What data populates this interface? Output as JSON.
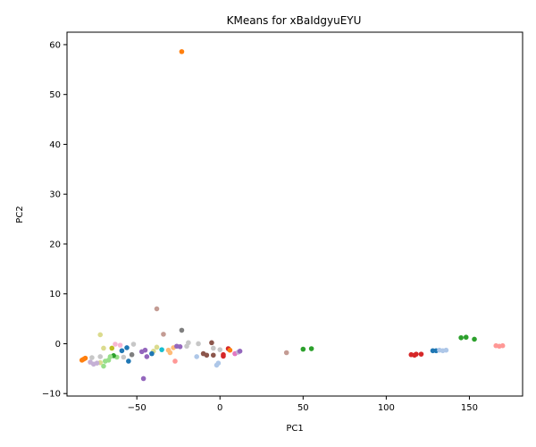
{
  "chart_data": {
    "type": "scatter",
    "title": "KMeans for xBaIdgyuEYU",
    "xlabel": "PC1",
    "ylabel": "PC2",
    "xlim": [
      -92,
      182
    ],
    "ylim": [
      -10.5,
      62.5
    ],
    "xticks": [
      -50,
      0,
      50,
      100,
      150
    ],
    "yticks": [
      -10,
      0,
      10,
      20,
      30,
      40,
      50,
      60
    ],
    "grid": false,
    "legend": false,
    "points": [
      {
        "x": -23,
        "y": 58.6,
        "color": "#ff7f0e"
      },
      {
        "x": -38,
        "y": 7.0,
        "color": "#c49c94"
      },
      {
        "x": -23,
        "y": 2.7,
        "color": "#7f7f7f"
      },
      {
        "x": -34,
        "y": 1.9,
        "color": "#c49c94"
      },
      {
        "x": -72,
        "y": 1.8,
        "color": "#dbdb8d"
      },
      {
        "x": -5,
        "y": 0.2,
        "color": "#8c564b"
      },
      {
        "x": -13,
        "y": 0.0,
        "color": "#c7c7c7"
      },
      {
        "x": -19,
        "y": 0.2,
        "color": "#c7c7c7"
      },
      {
        "x": -52,
        "y": -0.1,
        "color": "#c7c7c7"
      },
      {
        "x": -63,
        "y": -0.1,
        "color": "#f7b6d2"
      },
      {
        "x": -60,
        "y": -0.3,
        "color": "#f7b6d2"
      },
      {
        "x": -70,
        "y": -0.9,
        "color": "#dbdb8d"
      },
      {
        "x": -65,
        "y": -0.9,
        "color": "#bcbd22"
      },
      {
        "x": -38,
        "y": -0.7,
        "color": "#dbdb8d"
      },
      {
        "x": -35,
        "y": -1.2,
        "color": "#17becf"
      },
      {
        "x": -28,
        "y": -0.8,
        "color": "#ffbb78"
      },
      {
        "x": -26,
        "y": -0.5,
        "color": "#9467bd"
      },
      {
        "x": -24,
        "y": -0.6,
        "color": "#9467bd"
      },
      {
        "x": -20,
        "y": -0.5,
        "color": "#c7c7c7"
      },
      {
        "x": -4,
        "y": -0.9,
        "color": "#c7c7c7"
      },
      {
        "x": 0,
        "y": -1.2,
        "color": "#c7c7c7"
      },
      {
        "x": 5,
        "y": -1.0,
        "color": "#d62728"
      },
      {
        "x": 6,
        "y": -1.3,
        "color": "#ff7f0e"
      },
      {
        "x": -56,
        "y": -0.8,
        "color": "#1f77b4"
      },
      {
        "x": -59,
        "y": -1.4,
        "color": "#1f77b4"
      },
      {
        "x": -45,
        "y": -1.3,
        "color": "#9467bd"
      },
      {
        "x": -47,
        "y": -1.6,
        "color": "#9467bd"
      },
      {
        "x": -40,
        "y": -1.5,
        "color": "#dbdb8d"
      },
      {
        "x": -41,
        "y": -2.0,
        "color": "#1f77b4"
      },
      {
        "x": -31,
        "y": -1.3,
        "color": "#ffbb78"
      },
      {
        "x": -30,
        "y": -1.8,
        "color": "#ffbb78"
      },
      {
        "x": -10,
        "y": -2.0,
        "color": "#8c564b"
      },
      {
        "x": -8,
        "y": -2.3,
        "color": "#8c564b"
      },
      {
        "x": -4,
        "y": -2.3,
        "color": "#8c564b"
      },
      {
        "x": 2,
        "y": -2.2,
        "color": "#d62728"
      },
      {
        "x": 2,
        "y": -2.5,
        "color": "#d62728"
      },
      {
        "x": 9,
        "y": -2.0,
        "color": "#e377c2"
      },
      {
        "x": 11,
        "y": -1.7,
        "color": "#c5b0d5"
      },
      {
        "x": 12,
        "y": -1.5,
        "color": "#9467bd"
      },
      {
        "x": -14,
        "y": -2.6,
        "color": "#aec7e8"
      },
      {
        "x": -27,
        "y": -3.5,
        "color": "#ff9896"
      },
      {
        "x": -44,
        "y": -2.6,
        "color": "#9467bd"
      },
      {
        "x": -46,
        "y": -7.0,
        "color": "#9467bd"
      },
      {
        "x": -53,
        "y": -2.2,
        "color": "#7f7f7f"
      },
      {
        "x": -55,
        "y": -3.5,
        "color": "#1f77b4"
      },
      {
        "x": -58,
        "y": -2.7,
        "color": "#c7c7c7"
      },
      {
        "x": -62,
        "y": -2.7,
        "color": "#98df8a"
      },
      {
        "x": -64,
        "y": -2.4,
        "color": "#2ca02c"
      },
      {
        "x": -66,
        "y": -2.6,
        "color": "#98df8a"
      },
      {
        "x": -67,
        "y": -3.3,
        "color": "#98df8a"
      },
      {
        "x": -69,
        "y": -3.5,
        "color": "#98df8a"
      },
      {
        "x": -70,
        "y": -4.5,
        "color": "#98df8a"
      },
      {
        "x": -72,
        "y": -2.6,
        "color": "#c7c7c7"
      },
      {
        "x": -72,
        "y": -3.8,
        "color": "#dbdb8d"
      },
      {
        "x": -74,
        "y": -3.9,
        "color": "#c5b0d5"
      },
      {
        "x": -76,
        "y": -4.1,
        "color": "#c5b0d5"
      },
      {
        "x": -77,
        "y": -2.8,
        "color": "#c7c7c7"
      },
      {
        "x": -78,
        "y": -3.7,
        "color": "#c5b0d5"
      },
      {
        "x": -81,
        "y": -2.9,
        "color": "#ff7f0e"
      },
      {
        "x": -82,
        "y": -3.1,
        "color": "#ff7f0e"
      },
      {
        "x": -83,
        "y": -3.3,
        "color": "#ff7f0e"
      },
      {
        "x": -2,
        "y": -4.3,
        "color": "#aec7e8"
      },
      {
        "x": -1,
        "y": -3.9,
        "color": "#aec7e8"
      },
      {
        "x": 40,
        "y": -1.8,
        "color": "#c49c94"
      },
      {
        "x": 50,
        "y": -1.1,
        "color": "#2ca02c"
      },
      {
        "x": 55,
        "y": -1.0,
        "color": "#2ca02c"
      },
      {
        "x": 115,
        "y": -2.2,
        "color": "#d62728"
      },
      {
        "x": 117,
        "y": -2.3,
        "color": "#d62728"
      },
      {
        "x": 118,
        "y": -2.1,
        "color": "#d62728"
      },
      {
        "x": 121,
        "y": -2.1,
        "color": "#d62728"
      },
      {
        "x": 128,
        "y": -1.4,
        "color": "#1f77b4"
      },
      {
        "x": 130,
        "y": -1.4,
        "color": "#1f77b4"
      },
      {
        "x": 132,
        "y": -1.3,
        "color": "#aec7e8"
      },
      {
        "x": 134,
        "y": -1.4,
        "color": "#aec7e8"
      },
      {
        "x": 136,
        "y": -1.3,
        "color": "#aec7e8"
      },
      {
        "x": 145,
        "y": 1.2,
        "color": "#2ca02c"
      },
      {
        "x": 148,
        "y": 1.3,
        "color": "#2ca02c"
      },
      {
        "x": 153,
        "y": 0.9,
        "color": "#2ca02c"
      },
      {
        "x": 166,
        "y": -0.4,
        "color": "#ff9896"
      },
      {
        "x": 168,
        "y": -0.5,
        "color": "#ff9896"
      },
      {
        "x": 170,
        "y": -0.4,
        "color": "#ff9896"
      }
    ]
  }
}
